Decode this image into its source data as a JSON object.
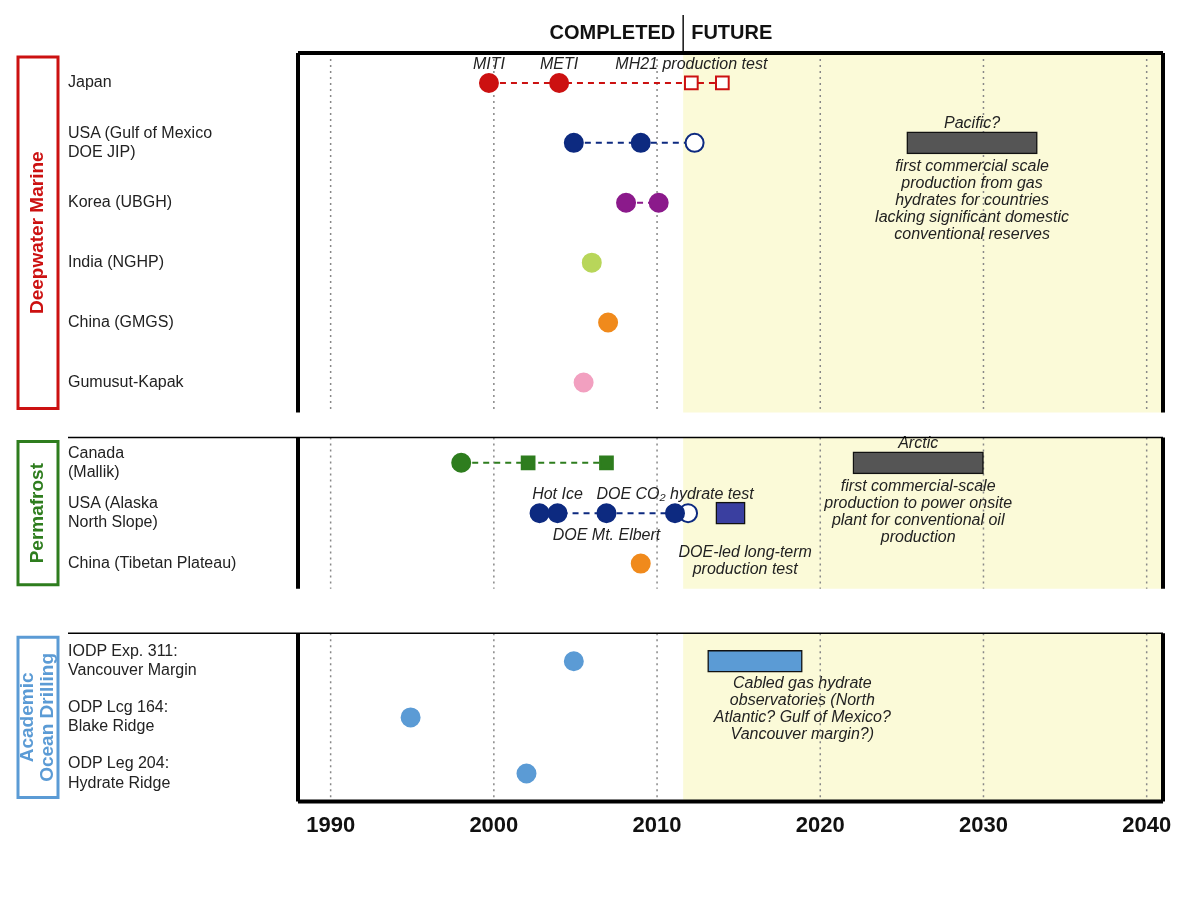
{
  "chart_data": [
    {
      "type": "scatter",
      "title": "Deepwater Marine",
      "orientation": "horizontal",
      "marker": "circle",
      "line_style": "dashed",
      "grid": "x",
      "tick_labels": "y",
      "categories": [
        "Japan",
        "USA (Gulf of Mexico\nDOE JIP)",
        "Korea (UBGH)",
        "India (NGHP)",
        "China (GMGS)",
        "Gumusut-Kapak"
      ],
      "xlim": [
        1988,
        2041
      ],
      "xticks": [
        1990,
        2000,
        2010,
        2020,
        2030,
        2040
      ],
      "series": [
        {
          "values": [
            1999.7,
            2004.9,
            2008.1,
            2006.0,
            2007.0,
            2005.5
          ],
          "colors": [
            "#cc1111",
            "#0d2a80",
            "#8b1a8b",
            "#b8d65a",
            "#f08a1c",
            "#f2a0c0"
          ]
        },
        {
          "values": [
            2004.0,
            2009.0,
            2010.1,
            null,
            null,
            null
          ],
          "colors": [
            "#cc1111",
            "#0d2a80",
            "#8b1a8b",
            null,
            null,
            null
          ]
        },
        {
          "values": [
            null,
            2012.3,
            null,
            null,
            null,
            null
          ],
          "color": "#0d2a80"
        },
        {
          "marker": "square",
          "values": [
            2012.1,
            null,
            null,
            null,
            null,
            null
          ],
          "color": "#cc1111"
        },
        {
          "marker": "square",
          "values": [
            2014.0,
            null,
            null,
            null,
            null,
            null
          ],
          "color": "#cc1111"
        },
        {
          "type": "bar",
          "color": "#555555",
          "base": [
            null,
            2025.3,
            null,
            null,
            null,
            null
          ],
          "values": [
            null,
            8.0,
            null,
            null,
            null,
            null
          ]
        }
      ],
      "bands": [
        {
          "axis": "x",
          "from": 2011.6,
          "to": 2041,
          "label": "FUTURE",
          "color": "#fbfad8"
        }
      ],
      "annotations": [
        "COMPLETED",
        {
          "text": "MITI",
          "x": 1999.7,
          "y": "Japan"
        },
        {
          "text": "METI",
          "x": 2004.0,
          "y": "Japan"
        },
        {
          "text": "MH21 production test",
          "x": 2012.1,
          "y": "Japan"
        },
        {
          "text": "Pacific?",
          "x": 2033.3,
          "y": "USA (Gulf of Mexico\nDOE JIP)"
        },
        {
          "text": "first commercial scale production from gas hydrates for countries lacking significant domestic conventional reserves",
          "x": 2033.3,
          "y": "USA (Gulf of Mexico\nDOE JIP)"
        }
      ]
    },
    {
      "type": "scatter",
      "title": "Permafrost",
      "orientation": "horizontal",
      "marker": "circle",
      "line_style": "dashed",
      "grid": "x",
      "tick_labels": "y",
      "categories": [
        "Canada\n(Mallik)",
        "USA (Alaska\nNorth Slope)",
        "China (Tibetan Plateau)"
      ],
      "xlim": [
        1988,
        2041
      ],
      "xticks": [
        1990,
        2000,
        2010,
        2020,
        2030,
        2040
      ],
      "series": [
        {
          "values": [
            1998.0,
            2002.8,
            2009.0
          ],
          "colors": [
            "#2e7d1e",
            "#0d2a80",
            "#f08a1c"
          ]
        },
        {
          "values": [
            null,
            2003.9,
            null
          ],
          "color": "#0d2a80"
        },
        {
          "values": [
            null,
            2006.9,
            null
          ],
          "color": "#0d2a80"
        },
        {
          "values": [
            null,
            2011.1,
            null
          ],
          "color": "#0d2a80"
        },
        {
          "values": [
            null,
            2011.9,
            null
          ],
          "color": "#0d2a80"
        },
        {
          "marker": "square",
          "values": [
            2002.1,
            null,
            null
          ],
          "color": "#2e7d1e"
        },
        {
          "marker": "square",
          "values": [
            2006.9,
            null,
            null
          ],
          "color": "#2e7d1e"
        },
        {
          "type": "bar",
          "color": "#555555",
          "base": [
            2022.0,
            null,
            null
          ],
          "values": [
            8.0,
            null,
            null
          ]
        },
        {
          "type": "bar",
          "color": "#3a3fa0",
          "base": [
            null,
            2013.6,
            null
          ],
          "values": [
            null,
            1.8,
            null
          ]
        }
      ],
      "bands": [
        {
          "axis": "x",
          "from": 2011.6,
          "to": 2041,
          "color": "#fbfad8"
        }
      ],
      "annotations": [
        {
          "text": "Arctic",
          "x": 2030.0,
          "y": "Canada\n(Mallik)"
        },
        {
          "text": "first commercial-scale production to power onsite plant for conventional oil production",
          "x": 2030.0,
          "y": "Canada\n(Mallik)"
        },
        {
          "text": "Hot Ice",
          "x": 2003.9,
          "y": "USA (Alaska\nNorth Slope)"
        },
        {
          "text": "DOE Mt. Elbert",
          "x": 2006.9,
          "y": "USA (Alaska\nNorth Slope)"
        },
        {
          "text": "DOE CO₂ hydrate test",
          "x": 2011.1,
          "y": "USA (Alaska\nNorth Slope)"
        },
        {
          "text": "DOE-led long-term production test",
          "x": 2015.4,
          "y": "USA (Alaska\nNorth Slope)"
        }
      ]
    },
    {
      "type": "scatter",
      "title": "Academic Ocean Drilling",
      "orientation": "horizontal",
      "marker": "circle",
      "line_style": "dashed",
      "grid": "x",
      "categories": [
        "IODP Exp. 311:\nVancouver Margin",
        "ODP Lcg 164:\nBlake Ridge",
        "ODP Leg 204:\nHydrate Ridge"
      ],
      "xlim": [
        1988,
        2041
      ],
      "xticks": [
        1990,
        2000,
        2010,
        2020,
        2030,
        2040
      ],
      "series": [
        {
          "values": [
            2004.9,
            1994.9,
            2002.0
          ],
          "color": "#5b9bd5"
        },
        {
          "type": "bar",
          "color": "#5b9bd5",
          "base": [
            2013.1,
            null,
            null
          ],
          "values": [
            5.8,
            null,
            null
          ]
        }
      ],
      "bands": [
        {
          "axis": "x",
          "from": 2011.6,
          "to": 2041,
          "color": "#fbfad8"
        }
      ],
      "annotations": [
        {
          "text": "Cabled gas hydrate observatories (North Atlantic? Gulf of Mexico? Vancouver margin?)",
          "x": 2018.9,
          "y": "IODP Exp. 311:\nVancouver Margin"
        }
      ]
    }
  ]
}
